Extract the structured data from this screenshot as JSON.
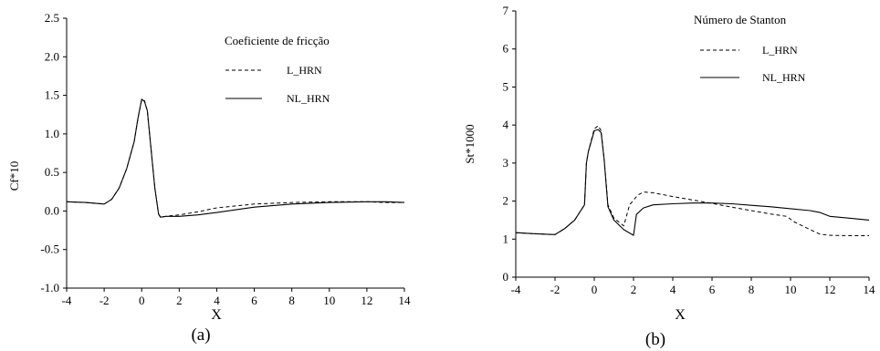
{
  "chart_data": [
    {
      "type": "line",
      "panel_label": "(a)",
      "legend_title": "Coeficiente de fricção",
      "xlabel": "X",
      "ylabel": "Cf*10",
      "xlim": [
        -4,
        14
      ],
      "ylim": [
        -1.0,
        2.5
      ],
      "xticks": [
        "-4",
        "-2",
        "0",
        "2",
        "4",
        "6",
        "8",
        "10",
        "12",
        "14"
      ],
      "yticks": [
        "-1.0",
        "-0.5",
        "0.0",
        "0.5",
        "1.0",
        "1.5",
        "2.0",
        "2.5"
      ],
      "grid": false,
      "legend_position": "top-right",
      "series": [
        {
          "name": "L_HRN",
          "dash": "dashed",
          "x": [
            -4,
            -3,
            -2,
            -1.6,
            -1.2,
            -0.8,
            -0.4,
            -0.2,
            0,
            0.15,
            0.3,
            0.5,
            0.7,
            0.9,
            1.0,
            1.3,
            1.6,
            2,
            3,
            4,
            6,
            8,
            10,
            12,
            13,
            14
          ],
          "y": [
            0.12,
            0.11,
            0.09,
            0.15,
            0.3,
            0.55,
            0.9,
            1.2,
            1.44,
            1.43,
            1.3,
            0.8,
            0.3,
            -0.04,
            -0.08,
            -0.07,
            -0.06,
            -0.05,
            -0.01,
            0.04,
            0.09,
            0.11,
            0.12,
            0.12,
            0.11,
            0.11
          ]
        },
        {
          "name": "NL_HRN",
          "dash": "solid",
          "x": [
            -4,
            -3,
            -2,
            -1.6,
            -1.2,
            -0.8,
            -0.4,
            -0.2,
            0,
            0.15,
            0.3,
            0.5,
            0.7,
            0.9,
            1.0,
            1.3,
            1.6,
            2,
            3,
            4,
            6,
            8,
            10,
            12,
            13,
            14
          ],
          "y": [
            0.12,
            0.11,
            0.09,
            0.15,
            0.3,
            0.55,
            0.9,
            1.2,
            1.45,
            1.42,
            1.3,
            0.8,
            0.3,
            -0.04,
            -0.08,
            -0.07,
            -0.07,
            -0.07,
            -0.05,
            -0.02,
            0.05,
            0.09,
            0.11,
            0.12,
            0.12,
            0.11
          ]
        }
      ]
    },
    {
      "type": "line",
      "panel_label": "(b)",
      "legend_title": "Número de Stanton",
      "xlabel": "X",
      "ylabel": "St*1000",
      "xlim": [
        -4,
        14
      ],
      "ylim": [
        0,
        7
      ],
      "xticks": [
        "-4",
        "-2",
        "0",
        "2",
        "4",
        "6",
        "8",
        "10",
        "12",
        "14"
      ],
      "yticks": [
        "0",
        "1",
        "2",
        "3",
        "4",
        "5",
        "6",
        "7"
      ],
      "grid": false,
      "legend_position": "top-right",
      "series": [
        {
          "name": "L_HRN",
          "dash": "dashed",
          "x": [
            -4,
            -3,
            -2,
            -1.5,
            -1,
            -0.5,
            -0.4,
            -0.3,
            0,
            0.2,
            0.35,
            0.5,
            0.7,
            1.0,
            1.5,
            1.8,
            2.2,
            2.5,
            3,
            4,
            5,
            6,
            7,
            8,
            9,
            9.8,
            10.2,
            10.8,
            11.5,
            12,
            13,
            14
          ],
          "y": [
            1.17,
            1.14,
            1.12,
            1.28,
            1.5,
            1.9,
            3.0,
            3.3,
            3.9,
            3.98,
            3.85,
            3.1,
            1.9,
            1.55,
            1.35,
            1.9,
            2.15,
            2.24,
            2.22,
            2.12,
            2.03,
            1.94,
            1.84,
            1.75,
            1.66,
            1.6,
            1.45,
            1.3,
            1.13,
            1.1,
            1.09,
            1.09
          ]
        },
        {
          "name": "NL_HRN",
          "dash": "solid",
          "x": [
            -4,
            -3,
            -2,
            -1.5,
            -1,
            -0.5,
            -0.4,
            -0.3,
            0,
            0.2,
            0.35,
            0.5,
            0.7,
            1.0,
            1.5,
            2.0,
            2.15,
            2.5,
            3,
            4,
            5,
            6,
            7,
            8,
            9,
            10,
            11,
            11.5,
            12,
            13,
            14
          ],
          "y": [
            1.17,
            1.14,
            1.12,
            1.28,
            1.5,
            1.9,
            3.0,
            3.3,
            3.85,
            3.88,
            3.8,
            3.1,
            1.85,
            1.5,
            1.25,
            1.1,
            1.65,
            1.82,
            1.9,
            1.93,
            1.95,
            1.95,
            1.93,
            1.89,
            1.85,
            1.8,
            1.75,
            1.7,
            1.6,
            1.55,
            1.5
          ]
        }
      ]
    }
  ]
}
